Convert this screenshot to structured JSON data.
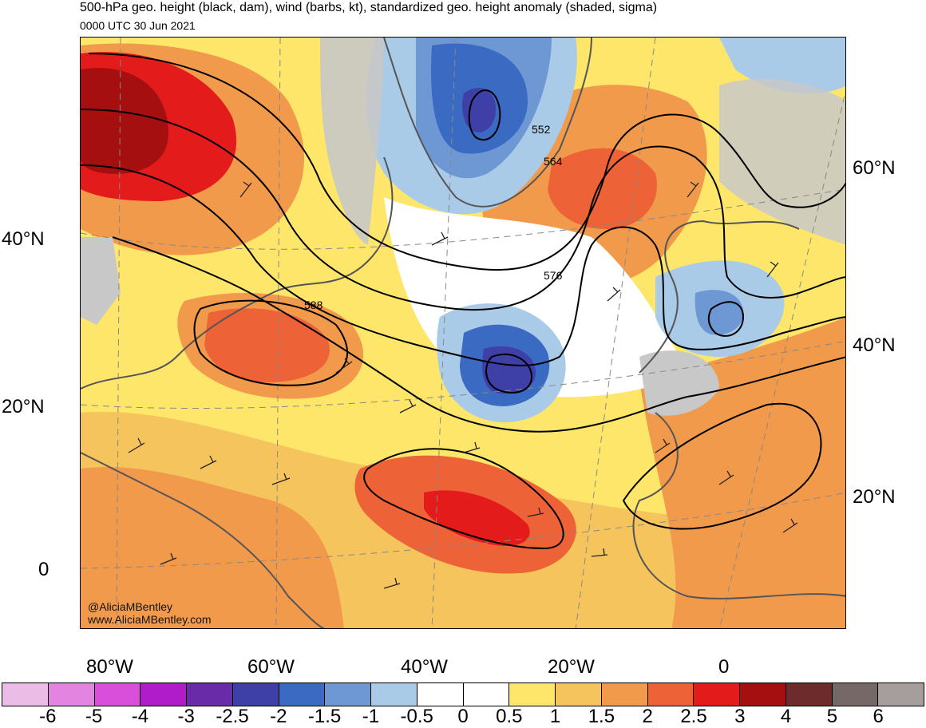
{
  "title": "500-hPa geo. height (black, dam), wind (barbs, kt), standardized geo. height anomaly (shaded, sigma)",
  "subtitle": "0000 UTC 30 Jun 2021",
  "credit": {
    "handle": "@AliciaMBentley",
    "website": "www.AliciaMBentley.com"
  },
  "lat_labels_left": [
    "40°N",
    "20°N",
    "0"
  ],
  "lat_labels_right": [
    "60°N",
    "40°N",
    "20°N"
  ],
  "lon_labels": [
    "80°W",
    "60°W",
    "40°W",
    "20°W",
    "0"
  ],
  "contour_labels": [
    "552",
    "564",
    "576",
    "588"
  ],
  "colorbar": {
    "ticks": [
      "-6",
      "-5",
      "-4",
      "-3",
      "-2.5",
      "-2",
      "-1.5",
      "-1",
      "-0.5",
      "0",
      "0.5",
      "1",
      "1.5",
      "2",
      "2.5",
      "3",
      "4",
      "5",
      "6"
    ],
    "colors": [
      "#ebbce6",
      "#e484e1",
      "#d94fda",
      "#b01cc9",
      "#6a2ba8",
      "#3f3fa8",
      "#3b6ac2",
      "#6e98d4",
      "#a9cbe8",
      "#ffffff",
      "#ffffff",
      "#fde66a",
      "#f6c45c",
      "#f29a4c",
      "#ed6236",
      "#e41b1b",
      "#a50f0f",
      "#6e2b2b",
      "#766866",
      "#a69e9c"
    ]
  },
  "colors": {
    "land_gray": "#c8c8c8",
    "coast": "#555555",
    "contour": "#000000"
  }
}
